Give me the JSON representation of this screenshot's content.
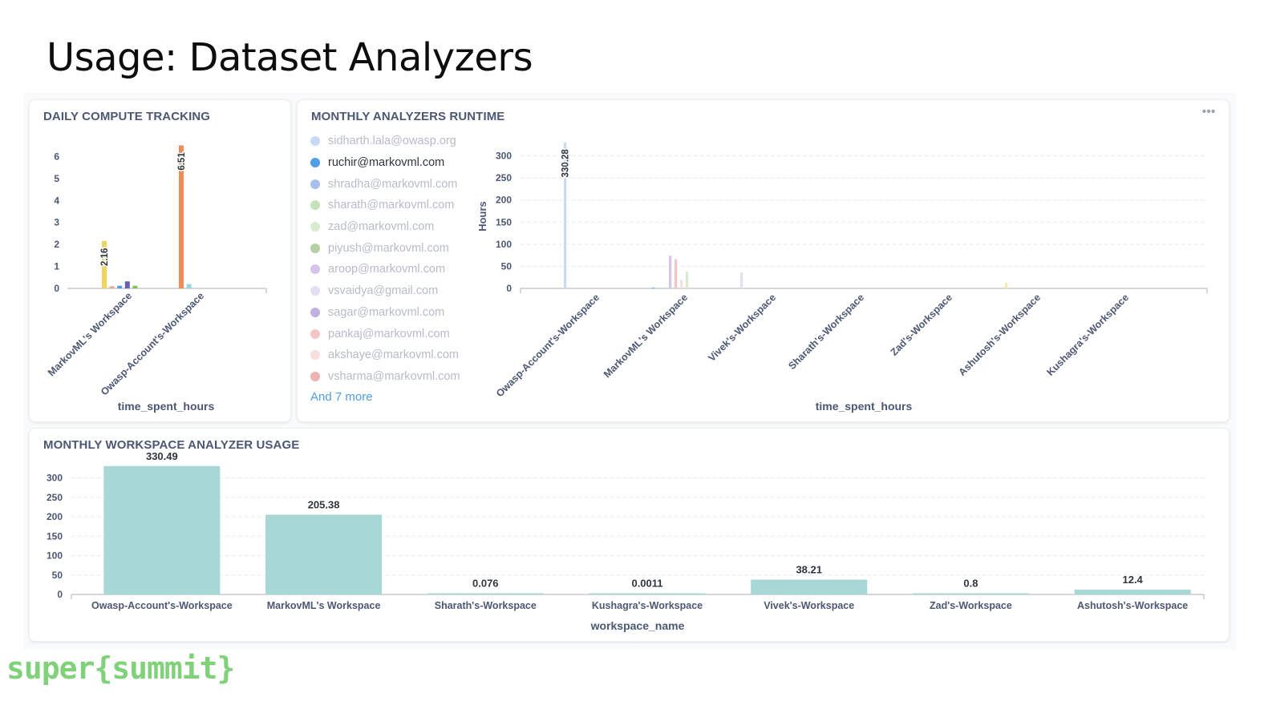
{
  "slide": {
    "title": "Usage: Dataset Analyzers",
    "brand": "super{summit}"
  },
  "colors": {
    "teal": "#a7d8d6",
    "blue": "#509ee3",
    "legend_active": "#2e353b",
    "legend_inactive": "#b7bcc7",
    "brand": "#7fd17a"
  },
  "cards": {
    "daily": {
      "title": "DAILY COMPUTE TRACKING"
    },
    "monthly_runtime": {
      "title": "MONTHLY ANALYZERS RUNTIME",
      "menu_icon": "ellipsis-icon",
      "menu_label": "•••"
    },
    "workspace_usage": {
      "title": "MONTHLY WORKSPACE ANALYZER USAGE"
    }
  },
  "legend": {
    "items": [
      {
        "label": "sidharth.lala@owasp.org",
        "color": "#c8daf3",
        "active": false
      },
      {
        "label": "ruchir@markovml.com",
        "color": "#509ee3",
        "active": true
      },
      {
        "label": "shradha@markovml.com",
        "color": "#a7c1ec",
        "active": false
      },
      {
        "label": "sharath@markovml.com",
        "color": "#c4e3b6",
        "active": false
      },
      {
        "label": "zad@markovml.com",
        "color": "#d8ebcc",
        "active": false
      },
      {
        "label": "piyush@markovml.com",
        "color": "#b5d0a4",
        "active": false
      },
      {
        "label": "aroop@markovml.com",
        "color": "#d7c4ea",
        "active": false
      },
      {
        "label": "vsvaidya@gmail.com",
        "color": "#e6ddf2",
        "active": false
      },
      {
        "label": "sagar@markovml.com",
        "color": "#c2b0e0",
        "active": false
      },
      {
        "label": "pankaj@markovml.com",
        "color": "#f3c5c5",
        "active": false
      },
      {
        "label": "akshaye@markovml.com",
        "color": "#f8dede",
        "active": false
      },
      {
        "label": "vsharma@markovml.com",
        "color": "#eeb2b2",
        "active": false
      }
    ],
    "more": "And 7 more"
  },
  "chart_data": [
    {
      "type": "bar",
      "title": "DAILY COMPUTE TRACKING",
      "xlabel": "time_spent_hours",
      "ylabel": "",
      "ylim": [
        0,
        6.6
      ],
      "yticks": [
        0,
        1,
        2,
        3,
        4,
        5,
        6
      ],
      "categories": [
        "MarkovML's Workspace",
        "Owasp-Account's-Workspace"
      ],
      "series": [
        {
          "color": "#f2d35b",
          "values": [
            2.16,
            0
          ]
        },
        {
          "color": "#f0a5a5",
          "values": [
            0.1,
            0
          ]
        },
        {
          "color": "#509ee3",
          "values": [
            0.12,
            0
          ]
        },
        {
          "color": "#6b5fb5",
          "values": [
            0.32,
            0
          ]
        },
        {
          "color": "#88bf4d",
          "values": [
            0.12,
            0
          ]
        },
        {
          "color": "#ef8c5a",
          "values": [
            0,
            6.51
          ]
        },
        {
          "color": "#98d9d9",
          "values": [
            0,
            0.2
          ]
        }
      ],
      "data_labels": [
        {
          "text": "2.16",
          "category": 0,
          "series": 0
        },
        {
          "text": "6.51",
          "category": 1,
          "series": 5
        }
      ],
      "grid": false
    },
    {
      "type": "bar",
      "title": "MONTHLY ANALYZERS RUNTIME",
      "xlabel": "time_spent_hours",
      "ylabel": "Hours",
      "ylim": [
        0,
        330
      ],
      "yticks": [
        0,
        50,
        100,
        150,
        200,
        250,
        300
      ],
      "categories": [
        "Owasp-Account's-Workspace",
        "MarkovML's Workspace",
        "Vivek's-Workspace",
        "Sharath's-Workspace",
        "Zad's-Workspace",
        "Ashutosh's-Workspace",
        "Kushagra's-Workspace"
      ],
      "series": [
        {
          "name": "sidharth.lala@owasp.org",
          "color": "#c8daf3",
          "values": [
            330.28,
            0,
            0,
            0,
            0,
            0,
            0
          ]
        },
        {
          "name": "ruchir@markovml.com",
          "color": "#509ee3",
          "values": [
            0,
            1.5,
            0,
            0,
            0,
            0,
            0
          ]
        },
        {
          "name": "shradha@markovml.com",
          "color": "#a7c1ec",
          "values": [
            0,
            1.2,
            0,
            0,
            0,
            0,
            0
          ]
        },
        {
          "name": "sharath@markovml.com",
          "color": "#c4e3b6",
          "values": [
            0,
            1.5,
            0,
            0,
            0,
            0,
            0
          ]
        },
        {
          "name": "aroop@markovml.com",
          "color": "#d7c4ea",
          "values": [
            0,
            74,
            0,
            0,
            0,
            0,
            0
          ]
        },
        {
          "name": "pankaj@markovml.com",
          "color": "#f3c5c5",
          "values": [
            0,
            66,
            0,
            0,
            0,
            0,
            0
          ]
        },
        {
          "name": "akshaye@markovml.com",
          "color": "#f8dede",
          "values": [
            0,
            19,
            0,
            0,
            0,
            0,
            0
          ]
        },
        {
          "name": "zad@markovml.com",
          "color": "#d8ebcc",
          "values": [
            0,
            38,
            0,
            0,
            0,
            0,
            0
          ]
        },
        {
          "name": "vsvaidya@gmail.com",
          "color": "#e6ddf2",
          "values": [
            0,
            0,
            36,
            0,
            0,
            0,
            0
          ]
        },
        {
          "name": "",
          "color": "#f6e6a8",
          "values": [
            0,
            0,
            0,
            0,
            0,
            12,
            0
          ]
        }
      ],
      "data_labels": [
        {
          "text": "330.28",
          "category": 0,
          "series": 0
        }
      ],
      "grid": true
    },
    {
      "type": "bar",
      "title": "MONTHLY WORKSPACE ANALYZER USAGE",
      "xlabel": "workspace_name",
      "ylabel": "",
      "ylim": [
        0,
        330
      ],
      "yticks": [
        0,
        50,
        100,
        150,
        200,
        250,
        300
      ],
      "categories": [
        "Owasp-Account's-Workspace",
        "MarkovML's Workspace",
        "Sharath's-Workspace",
        "Kushagra's-Workspace",
        "Vivek's-Workspace",
        "Zad's-Workspace",
        "Ashutosh's-Workspace"
      ],
      "values": [
        330.49,
        205.38,
        0.076,
        0.0011,
        38.21,
        0.8,
        12.4
      ],
      "value_labels": [
        "330.49",
        "205.38",
        "0.076",
        "0.0011",
        "38.21",
        "0.8",
        "12.4"
      ],
      "color": "#a7d8d6",
      "grid": true
    }
  ]
}
